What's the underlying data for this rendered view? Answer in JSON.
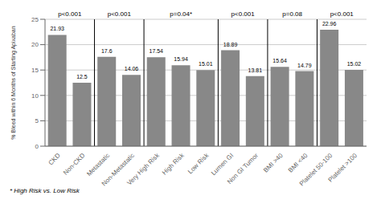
{
  "chart_data": {
    "type": "bar",
    "categories": [
      "CKD",
      "Non-CKD",
      "Metastatic",
      "Non-Metastatic",
      "Very High Risk",
      "High Risk",
      "Low Risk",
      "Lumen GI",
      "Non GI Tumor",
      "BMI >40",
      "BMI <40",
      "Platelet 50-100",
      "Platelet >100"
    ],
    "values": [
      21.93,
      12.5,
      17.6,
      14.06,
      17.54,
      15.94,
      15.01,
      18.89,
      13.81,
      15.64,
      14.79,
      22.96,
      15.02
    ],
    "color": "#888888",
    "ylabel": "% Bleed within 6 Months of Starting Apixaban",
    "ylim": [
      0,
      25
    ],
    "yticks": [
      0,
      5,
      10,
      15,
      20,
      25
    ],
    "grid": true,
    "data_labels": true,
    "annotations": [
      {
        "text": "p<0.001",
        "categories": [
          "CKD",
          "Non-CKD"
        ]
      },
      {
        "text": "p<0.001",
        "categories": [
          "Metastatic",
          "Non-Metastatic"
        ]
      },
      {
        "text": "p=0.04*",
        "categories": [
          "Very High Risk",
          "High Risk",
          "Low Risk"
        ]
      },
      {
        "text": "p<0.001",
        "categories": [
          "Lumen GI",
          "Non GI Tumor"
        ]
      },
      {
        "text": "p=0.08",
        "categories": [
          "BMI >40",
          "BMI <40"
        ]
      },
      {
        "text": "p<0.001",
        "categories": [
          "Platelet 50-100",
          "Platelet >100"
        ]
      }
    ],
    "footnote": "* High Risk vs. Low Risk"
  }
}
